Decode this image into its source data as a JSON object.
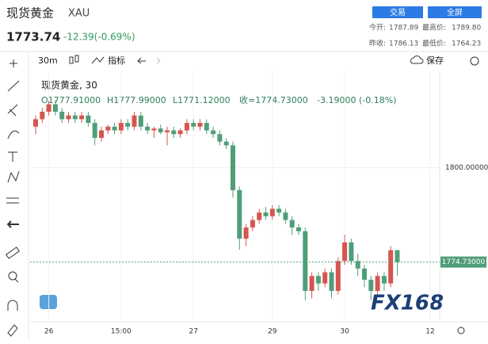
{
  "header": {
    "name": "现货黄金",
    "code": "XAU",
    "price": "1773.74",
    "change": "-12.39(-0.69%)",
    "buttons": [
      "交易",
      "全屏"
    ],
    "stats": [
      {
        "label": "今开:",
        "value": "1787.89"
      },
      {
        "label": "最高价:",
        "value": "1789.80"
      },
      {
        "label": "昨收:",
        "value": "1786.13"
      },
      {
        "label": "最低价:",
        "value": "1764.23"
      }
    ]
  },
  "toolbar": {
    "interval": "30m",
    "indicators": "指标",
    "save": "保存"
  },
  "legend": {
    "title": "现货黄金, 30",
    "open": "O1777.91000",
    "high": "H1777.99000",
    "low": "L1771.12000",
    "close": "收=1774.73000",
    "change": "-3.19000 (-0.18%)"
  },
  "logo": "FX168",
  "chart_data": {
    "type": "candlestick",
    "categories": [
      null,
      null,
      "26",
      null,
      null,
      null,
      null,
      null,
      null,
      null,
      null,
      null,
      null,
      "15:00",
      null,
      null,
      null,
      null,
      null,
      null,
      null,
      null,
      null,
      null,
      "27",
      null,
      null,
      null,
      null,
      null,
      null,
      null,
      null,
      null,
      null,
      null,
      "29",
      null,
      null,
      null,
      null,
      null,
      null,
      null,
      null,
      null,
      null,
      "30",
      null,
      null,
      null,
      null,
      null,
      null,
      null,
      null,
      null,
      null,
      null,
      null,
      "12"
    ],
    "open": [
      1811,
      1813,
      1815,
      1817,
      1815,
      1813,
      1814,
      1813,
      1814,
      1812,
      1808,
      1810,
      1811,
      1810,
      1812,
      1811,
      1814,
      1811,
      1810,
      1810.5,
      1809.5,
      1810,
      1809,
      1810,
      1812,
      1811,
      1812,
      1810,
      1809,
      1807,
      1806,
      1794,
      1781,
      1784,
      1786,
      1788,
      1787,
      1789,
      1788,
      1786,
      1784,
      1783,
      1767,
      1771,
      1769,
      1772,
      1767,
      1775,
      1780,
      1775,
      1773,
      1770,
      1767,
      1771,
      1769,
      1777.91,
      null,
      null,
      null,
      null,
      null
    ],
    "high": [
      1814,
      1816,
      1818,
      1818,
      1816,
      1815,
      1815,
      1815,
      1815,
      1813,
      1811,
      1811.5,
      1812,
      1813,
      1813,
      1815,
      1815,
      1812,
      1811,
      1811.5,
      1811,
      1811,
      1810.5,
      1813,
      1813,
      1813,
      1813,
      1811,
      1810,
      1808,
      1807,
      1795,
      1785,
      1787,
      1789,
      1789.5,
      1790,
      1790,
      1789,
      1787,
      1785,
      1784,
      1772,
      1772,
      1773,
      1773,
      1776,
      1782,
      1781,
      1777,
      1774,
      1771,
      1772,
      1772,
      1779,
      1777.99,
      null,
      null,
      null,
      null,
      null
    ],
    "low": [
      1809,
      1812,
      1814,
      1814,
      1812,
      1812,
      1812,
      1812,
      1811,
      1806,
      1807,
      1809,
      1809,
      1809,
      1810,
      1810,
      1810,
      1809,
      1808,
      1809,
      1806,
      1808,
      1808,
      1809,
      1810,
      1810,
      1809,
      1808,
      1806,
      1805,
      1792,
      1778,
      1779,
      1783,
      1785,
      1786,
      1786,
      1787,
      1785,
      1782,
      1782,
      1764.5,
      1765,
      1767,
      1768,
      1765,
      1766,
      1774,
      1774,
      1771,
      1768,
      1764.5,
      1766,
      1767,
      1768,
      1771.12,
      null,
      null,
      null,
      null,
      null
    ],
    "close": [
      1813,
      1815,
      1817,
      1815,
      1813,
      1814,
      1813,
      1814,
      1812,
      1808,
      1810,
      1811,
      1810,
      1812,
      1811,
      1814,
      1811,
      1810,
      1810.5,
      1809.5,
      1810,
      1809,
      1810,
      1812,
      1811,
      1812,
      1810,
      1809,
      1807,
      1806,
      1794,
      1781,
      1784,
      1786,
      1788,
      1787,
      1789,
      1788,
      1786,
      1784,
      1783,
      1767,
      1771,
      1769,
      1772,
      1767,
      1775,
      1780,
      1775,
      1773,
      1770,
      1767,
      1771,
      1769,
      1777.91,
      1774.73,
      null,
      null,
      null,
      null,
      null
    ],
    "up_color": "#d6564f",
    "down_color": "#4f9e7a",
    "ylim": [
      1760,
      1823.7
    ],
    "yticks": [
      {
        "value": 1800,
        "label": "1800.00000"
      }
    ],
    "last_price": {
      "value": 1774.73,
      "label": "1774.73000"
    },
    "grid": true
  }
}
